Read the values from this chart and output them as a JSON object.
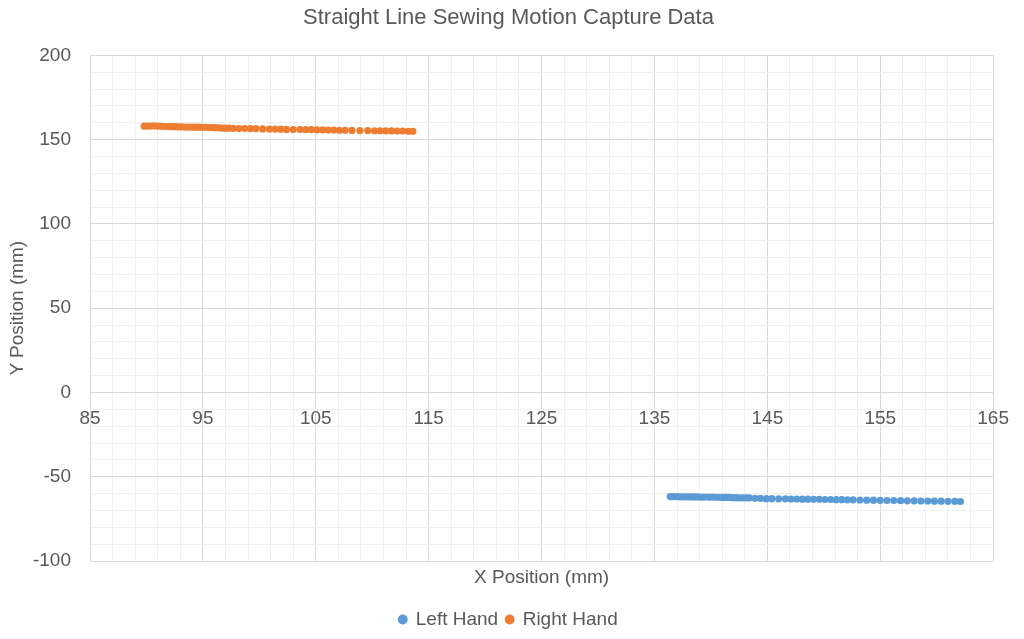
{
  "chart_data": {
    "type": "scatter",
    "title": "Straight Line Sewing Motion Capture Data",
    "xlabel": "X Position (mm)",
    "ylabel": "Y Position (mm)",
    "xlim": [
      85,
      165
    ],
    "ylim": [
      -100,
      200
    ],
    "xticks": [
      85,
      {
        "value": 87,
        "label": null
      },
      {
        "value": 89,
        "label": null
      },
      {
        "value": 91,
        "label": null
      },
      {
        "value": 93,
        "label": null
      },
      95,
      {
        "value": 97,
        "label": null
      },
      {
        "value": 99,
        "label": null
      },
      {
        "value": 101,
        "label": null
      },
      {
        "value": 103,
        "label": null
      },
      105,
      {
        "value": 107,
        "label": null
      },
      {
        "value": 109,
        "label": null
      },
      {
        "value": 111,
        "label": null
      },
      {
        "value": 113,
        "label": null
      },
      115,
      {
        "value": 117,
        "label": null
      },
      {
        "value": 119,
        "label": null
      },
      {
        "value": 121,
        "label": null
      },
      {
        "value": 123,
        "label": null
      },
      125,
      {
        "value": 127,
        "label": null
      },
      {
        "value": 129,
        "label": null
      },
      {
        "value": 131,
        "label": null
      },
      {
        "value": 133,
        "label": null
      },
      135,
      {
        "value": 137,
        "label": null
      },
      {
        "value": 139,
        "label": null
      },
      {
        "value": 141,
        "label": null
      },
      {
        "value": 143,
        "label": null
      },
      145,
      {
        "value": 147,
        "label": null
      },
      {
        "value": 149,
        "label": null
      },
      {
        "value": 151,
        "label": null
      },
      {
        "value": 153,
        "label": null
      },
      155,
      {
        "value": 157,
        "label": null
      },
      {
        "value": 159,
        "label": null
      },
      {
        "value": 161,
        "label": null
      },
      {
        "value": 163,
        "label": null
      },
      165
    ],
    "yticks": [
      -100,
      {
        "value": -90,
        "label": null
      },
      {
        "value": -80,
        "label": null
      },
      {
        "value": -70,
        "label": null
      },
      {
        "value": -60,
        "label": null
      },
      -50,
      {
        "value": -40,
        "label": null
      },
      {
        "value": -30,
        "label": null
      },
      {
        "value": -20,
        "label": null
      },
      {
        "value": -10,
        "label": null
      },
      0,
      {
        "value": 10,
        "label": null
      },
      {
        "value": 20,
        "label": null
      },
      {
        "value": 30,
        "label": null
      },
      {
        "value": 40,
        "label": null
      },
      50,
      {
        "value": 60,
        "label": null
      },
      {
        "value": 70,
        "label": null
      },
      {
        "value": 80,
        "label": null
      },
      {
        "value": 90,
        "label": null
      },
      100,
      {
        "value": 110,
        "label": null
      },
      {
        "value": 120,
        "label": null
      },
      {
        "value": 130,
        "label": null
      },
      {
        "value": 140,
        "label": null
      },
      150,
      {
        "value": 160,
        "label": null
      },
      {
        "value": 170,
        "label": null
      },
      {
        "value": 180,
        "label": null
      },
      {
        "value": 190,
        "label": null
      },
      200
    ],
    "grid": true,
    "legend": "bottom",
    "marker": "circle",
    "series": [
      {
        "name": "Left Hand",
        "color": "#5b9bd5",
        "x": [
          136.4,
          136.7,
          137.0,
          137.3,
          137.6,
          137.9,
          138.2,
          138.5,
          138.8,
          139.1,
          139.4,
          139.8,
          140.1,
          140.4,
          140.7,
          141.0,
          141.3,
          141.6,
          141.9,
          142.2,
          142.5,
          142.8,
          143.1,
          143.4,
          143.9,
          144.4,
          144.9,
          145.4,
          146.0,
          146.6,
          147.1,
          147.6,
          148.1,
          148.6,
          149.1,
          149.6,
          150.1,
          150.6,
          151.1,
          151.6,
          152.1,
          152.6,
          153.2,
          153.8,
          154.4,
          155.0,
          155.6,
          156.2,
          156.8,
          157.4,
          158.0,
          158.6,
          159.2,
          159.8,
          160.4,
          161.0,
          161.6,
          162.1
        ],
        "values": [
          -61.8,
          -61.8,
          -61.8,
          -61.9,
          -61.9,
          -61.9,
          -62.0,
          -62.0,
          -62.0,
          -62.1,
          -62.1,
          -62.1,
          -62.1,
          -62.2,
          -62.2,
          -62.3,
          -62.3,
          -62.3,
          -62.4,
          -62.4,
          -62.5,
          -62.5,
          -62.6,
          -62.6,
          -62.8,
          -62.9,
          -63.0,
          -63.0,
          -63.1,
          -63.1,
          -63.2,
          -63.2,
          -63.3,
          -63.3,
          -63.4,
          -63.4,
          -63.5,
          -63.5,
          -63.6,
          -63.6,
          -63.7,
          -63.7,
          -63.8,
          -63.9,
          -63.9,
          -64.0,
          -64.1,
          -64.1,
          -64.2,
          -64.3,
          -64.3,
          -64.4,
          -64.4,
          -64.5,
          -64.5,
          -64.6,
          -64.6,
          -64.7
        ]
      },
      {
        "name": "Right Hand",
        "color": "#ed7d31",
        "x": [
          89.8,
          90.1,
          90.4,
          90.7,
          91.0,
          91.3,
          91.6,
          91.9,
          92.2,
          92.5,
          92.8,
          93.1,
          93.4,
          93.7,
          94.0,
          94.3,
          94.6,
          94.9,
          95.2,
          95.5,
          95.8,
          96.1,
          96.4,
          96.7,
          97.0,
          97.3,
          97.7,
          98.2,
          98.7,
          99.2,
          99.7,
          100.3,
          100.9,
          101.4,
          101.9,
          102.4,
          103.0,
          103.6,
          104.1,
          104.6,
          105.1,
          105.6,
          106.1,
          106.6,
          107.1,
          107.6,
          108.2,
          108.9,
          109.6,
          110.2,
          110.7,
          111.2,
          111.7,
          112.2,
          112.7,
          113.2,
          113.6
        ],
        "values": [
          158.0,
          158.0,
          158.1,
          158.2,
          158.0,
          157.9,
          157.8,
          157.8,
          157.7,
          157.7,
          157.6,
          157.6,
          157.5,
          157.5,
          157.5,
          157.4,
          157.4,
          157.3,
          157.3,
          157.2,
          157.2,
          157.1,
          157.0,
          156.9,
          156.8,
          156.8,
          156.7,
          156.6,
          156.6,
          156.5,
          156.5,
          156.4,
          156.3,
          156.3,
          156.2,
          156.1,
          156.0,
          156.0,
          155.9,
          155.9,
          155.8,
          155.8,
          155.7,
          155.7,
          155.6,
          155.6,
          155.5,
          155.4,
          155.4,
          155.3,
          155.3,
          155.2,
          155.2,
          155.1,
          155.1,
          155.0,
          155.0
        ]
      }
    ]
  }
}
